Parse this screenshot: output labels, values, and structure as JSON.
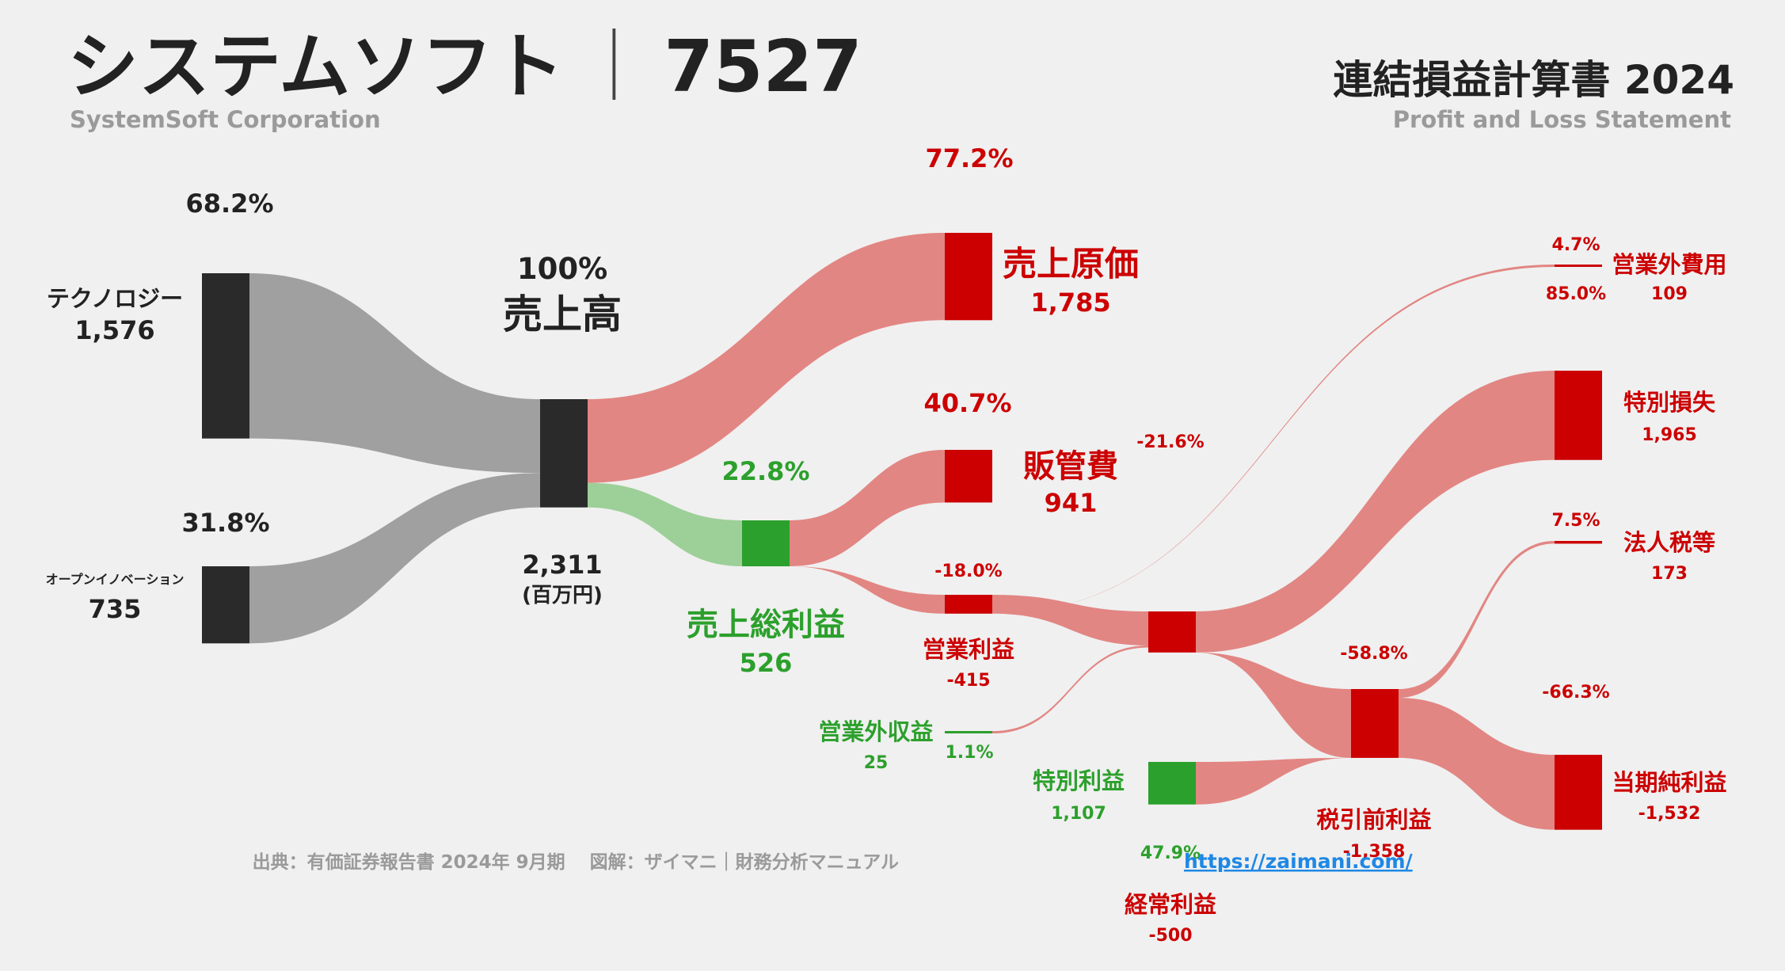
{
  "header": {
    "company_name": "システムソフト",
    "separator": "｜",
    "ticker": "7527",
    "company_english": "SystemSoft Corporation",
    "statement_title": "連結損益計算書 2024",
    "statement_english": "Profit and Loss Statement"
  },
  "footer": {
    "source": "出典：有価証券報告書 2024年 9月期　 図解：ザイマニ｜財務分析マニュアル",
    "url": "https://zaimani.com/"
  },
  "colors": {
    "dark": "#2a2a2a",
    "gray_flow": "#a0a0a0",
    "red": "#cc0000",
    "red_flow": "#e28683",
    "green": "#2ca02c",
    "green_flow": "#9dcf98",
    "muted_text": "#9a9a9a",
    "link": "#1e88e5"
  },
  "chart_data": {
    "type": "sankey",
    "unit": "(百万円)",
    "nodes": [
      {
        "id": "tech",
        "label": "テクノロジー",
        "value": "1,576",
        "pct": "68.2%",
        "color": "dark"
      },
      {
        "id": "open",
        "label": "オープンイノベーション",
        "value": "735",
        "pct": "31.8%",
        "color": "dark"
      },
      {
        "id": "revenue",
        "label": "売上高",
        "value": "2,311",
        "pct": "100%",
        "color": "dark"
      },
      {
        "id": "cogs",
        "label": "売上原価",
        "value": "1,785",
        "pct": "77.2%",
        "color": "red"
      },
      {
        "id": "gross",
        "label": "売上総利益",
        "value": "526",
        "pct": "22.8%",
        "color": "green"
      },
      {
        "id": "sga",
        "label": "販管費",
        "value": "941",
        "pct": "40.7%",
        "color": "red"
      },
      {
        "id": "op",
        "label": "営業利益",
        "value": "-415",
        "pct": "-18.0%",
        "color": "red"
      },
      {
        "id": "nonop_inc",
        "label": "営業外収益",
        "value": "25",
        "pct": "1.1%",
        "color": "green"
      },
      {
        "id": "nonop_exp",
        "label": "営業外費用",
        "value": "109",
        "pct": "4.7%",
        "pct2": "85.0%",
        "color": "red"
      },
      {
        "id": "ordinary",
        "label": "経常利益",
        "value": "-500",
        "pct": "-21.6%",
        "color": "red"
      },
      {
        "id": "sp_gain",
        "label": "特別利益",
        "value": "1,107",
        "pct": "47.9%",
        "color": "green"
      },
      {
        "id": "sp_loss",
        "label": "特別損失",
        "value": "1,965",
        "color": "red"
      },
      {
        "id": "pretax",
        "label": "税引前利益",
        "value": "-1,358",
        "pct": "-58.8%",
        "color": "red"
      },
      {
        "id": "tax",
        "label": "法人税等",
        "value": "173",
        "pct": "7.5%",
        "color": "red"
      },
      {
        "id": "net",
        "label": "当期純利益",
        "value": "-1,532",
        "pct": "-66.3%",
        "color": "red"
      }
    ],
    "links": [
      {
        "source": "tech",
        "target": "revenue",
        "value": 1576
      },
      {
        "source": "open",
        "target": "revenue",
        "value": 735
      },
      {
        "source": "revenue",
        "target": "cogs",
        "value": 1785
      },
      {
        "source": "revenue",
        "target": "gross",
        "value": 526
      },
      {
        "source": "gross",
        "target": "sga",
        "value": 941
      },
      {
        "source": "gross",
        "target": "op",
        "value": 415
      },
      {
        "source": "op",
        "target": "ordinary",
        "value": 415
      },
      {
        "source": "op",
        "target": "nonop_exp",
        "value": 109
      },
      {
        "source": "nonop_inc",
        "target": "ordinary",
        "value": 25
      },
      {
        "source": "ordinary",
        "target": "sp_loss",
        "value": 1965
      },
      {
        "source": "ordinary",
        "target": "pretax",
        "value": 1358
      },
      {
        "source": "sp_gain",
        "target": "pretax",
        "value": 1107
      },
      {
        "source": "pretax",
        "target": "tax",
        "value": 173
      },
      {
        "source": "pretax",
        "target": "net",
        "value": 1532
      }
    ]
  }
}
